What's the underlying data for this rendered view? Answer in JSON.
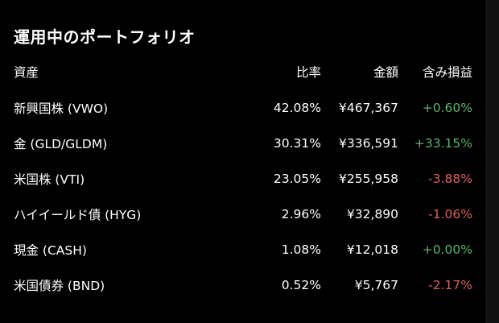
{
  "title": "運用中のポートフォリオ",
  "columns": {
    "asset": "資産",
    "ratio": "比率",
    "amount": "金額",
    "pl": "含み損益"
  },
  "rows": [
    {
      "asset": "新興国株 (VWO)",
      "ratio": "42.08%",
      "amount": "¥467,367",
      "pl": "+0.60%",
      "pl_sign": "pos"
    },
    {
      "asset": "金 (GLD/GLDM)",
      "ratio": "30.31%",
      "amount": "¥336,591",
      "pl": "+33.15%",
      "pl_sign": "pos"
    },
    {
      "asset": "米国株 (VTI)",
      "ratio": "23.05%",
      "amount": "¥255,958",
      "pl": "-3.88%",
      "pl_sign": "neg"
    },
    {
      "asset": "ハイイールド債 (HYG)",
      "ratio": "2.96%",
      "amount": "¥32,890",
      "pl": "-1.06%",
      "pl_sign": "neg"
    },
    {
      "asset": "現金 (CASH)",
      "ratio": "1.08%",
      "amount": "¥12,018",
      "pl": "+0.00%",
      "pl_sign": "zero"
    },
    {
      "asset": "米国債券 (BND)",
      "ratio": "0.52%",
      "amount": "¥5,767",
      "pl": "-2.17%",
      "pl_sign": "neg"
    }
  ],
  "colors": {
    "background": "#000000",
    "positive": "#5fb36a",
    "negative": "#d9615f",
    "text": "#ffffff"
  }
}
